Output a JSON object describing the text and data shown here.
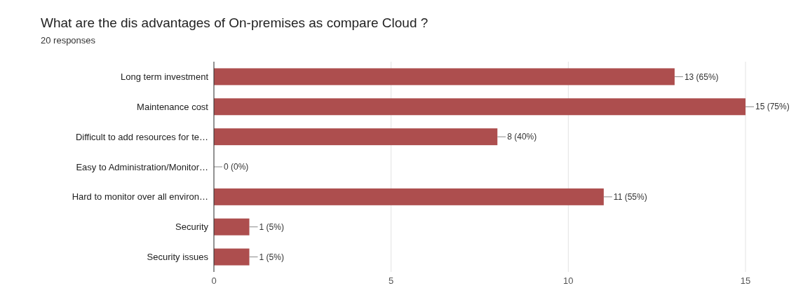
{
  "chart_data": {
    "type": "bar",
    "orientation": "horizontal",
    "title": "What are the dis advantages of On-premises as compare Cloud ?",
    "subtitle": "20 responses",
    "categories": [
      "Long term investment",
      "Maintenance cost",
      "Difficult to add resources for te…",
      "Easy to Administration/Monitor…",
      "Hard to monitor over all environ…",
      "Security",
      "Security issues"
    ],
    "values": [
      13,
      15,
      8,
      0,
      11,
      1,
      1
    ],
    "color": "#ad4e4e",
    "value_labels": [
      "13 (65%)",
      "15 (75%)",
      "8 (40%)",
      "0 (0%)",
      "11 (55%)",
      "1 (5%)",
      "1 (5%)"
    ],
    "xlim": [
      0,
      15
    ],
    "xticks": [
      0,
      5,
      10,
      15
    ],
    "grid": "x"
  }
}
